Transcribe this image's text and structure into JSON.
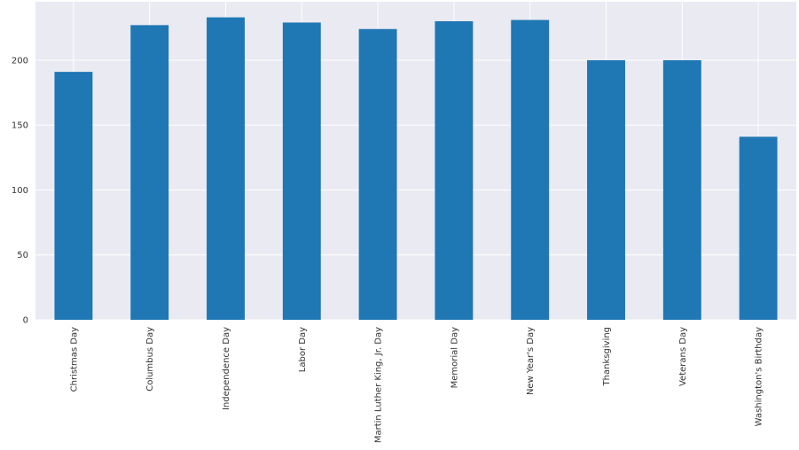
{
  "chart_data": {
    "type": "bar",
    "categories": [
      "Christmas Day",
      "Columbus Day",
      "Independence Day",
      "Labor Day",
      "Martin Luther King, Jr. Day",
      "Memorial Day",
      "New Year's Day",
      "Thanksgiving",
      "Veterans Day",
      "Washington's Birthday"
    ],
    "values": [
      191,
      227,
      233,
      229,
      224,
      230,
      231,
      200,
      200,
      141
    ],
    "color": "#1f77b4",
    "ylim": [
      0,
      245
    ],
    "yticks": [
      0,
      50,
      100,
      150,
      200
    ],
    "grid": true
  }
}
